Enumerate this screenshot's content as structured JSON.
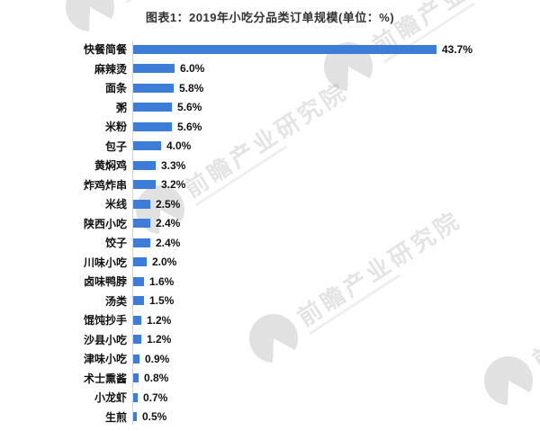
{
  "header": {
    "title": "图表1：2019年小吃分品类订单规模(单位：%)"
  },
  "chart_data": {
    "type": "bar",
    "orientation": "horizontal",
    "title": "图表1：2019年小吃分品类订单规模(单位：%)",
    "unit": "%",
    "categories": [
      "快餐简餐",
      "麻辣烫",
      "面条",
      "粥",
      "米粉",
      "包子",
      "黄焖鸡",
      "炸鸡炸串",
      "米线",
      "陕西小吃",
      "饺子",
      "川味小吃",
      "卤味鸭脖",
      "汤类",
      "馄饨抄手",
      "沙县小吃",
      "津味小吃",
      "术士熏酱",
      "小龙虾",
      "生煎"
    ],
    "values": [
      43.7,
      6.0,
      5.8,
      5.6,
      5.6,
      4.0,
      3.3,
      3.2,
      2.5,
      2.4,
      2.4,
      2.0,
      1.6,
      1.5,
      1.2,
      1.2,
      0.9,
      0.8,
      0.7,
      0.5
    ],
    "value_labels": [
      "43.7%",
      "6.0%",
      "5.8%",
      "5.6%",
      "5.6%",
      "4.0%",
      "3.3%",
      "3.2%",
      "2.5%",
      "2.4%",
      "2.4%",
      "2.0%",
      "1.6%",
      "1.5%",
      "1.2%",
      "1.2%",
      "0.9%",
      "0.8%",
      "0.7%",
      "0.5%"
    ],
    "xlabel": "",
    "ylabel": "",
    "xlim": [
      0,
      45
    ],
    "grid": false,
    "legend": null,
    "bar_color": "#3E7DD7",
    "category_label_color": "#111111",
    "value_label_color": "#111111",
    "title_color": "#333333",
    "axis_line_color": "#cfd4da"
  },
  "watermark": {
    "text": "前瞻产业研究院",
    "color_hint": "#d7d7d7"
  }
}
